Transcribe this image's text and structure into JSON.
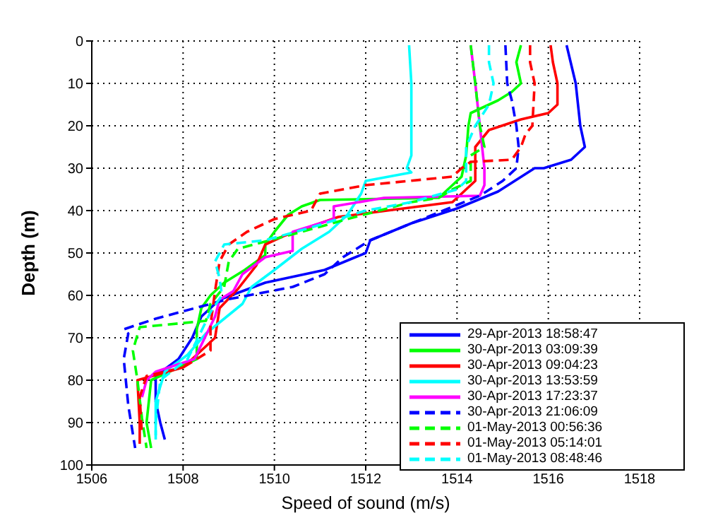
{
  "chart_data": {
    "type": "line",
    "xlabel": "Speed of sound (m/s)",
    "ylabel": "Depth (m)",
    "xlim": [
      1506,
      1518
    ],
    "xticks": [
      1506,
      1508,
      1510,
      1512,
      1514,
      1516,
      1518
    ],
    "ylim": [
      100,
      0
    ],
    "yticks": [
      0,
      10,
      20,
      30,
      40,
      50,
      60,
      70,
      80,
      90,
      100
    ],
    "grid": true,
    "legend": "bottom right",
    "marker": "none",
    "series": [
      {
        "name": "29-Apr-2013 18:58:47",
        "color": "#0000ff",
        "line_style": "solid",
        "x": [
          1516.4,
          1516.6,
          1516.7,
          1516.8,
          1516.5,
          1515.9,
          1515.7,
          1514.9,
          1514,
          1513,
          1512.1,
          1512,
          1511.1,
          1509.8,
          1508.8,
          1508.4,
          1508.2,
          1507.9,
          1507.4,
          1507.4,
          1507.5,
          1507.6
        ],
        "values": [
          1,
          10,
          20,
          25,
          28,
          30,
          30,
          35.5,
          39.5,
          43,
          47,
          50,
          54,
          57,
          61,
          65,
          70,
          75,
          79,
          85,
          90,
          94
        ]
      },
      {
        "name": "30-Apr-2013 03:09:39",
        "color": "#00ff00",
        "line_style": "solid",
        "x": [
          1515.4,
          1515.3,
          1515.4,
          1515.2,
          1514.9,
          1514.3,
          1514.25,
          1514.2,
          1514.1,
          1513.8,
          1513.6,
          1511,
          1510.6,
          1510.3,
          1510,
          1509.8,
          1509.8,
          1509.35,
          1508.9,
          1508.6,
          1508.4,
          1508.3,
          1508.3,
          1507.3,
          1507.2,
          1507.3
        ],
        "values": [
          1,
          5,
          10,
          12,
          14,
          17,
          20,
          27,
          32,
          35,
          37,
          37.5,
          39,
          41,
          45,
          48,
          50.5,
          54,
          57,
          60,
          63,
          68,
          75,
          80,
          90,
          96
        ]
      },
      {
        "name": "30-Apr-2013 09:04:23",
        "color": "#ff0000",
        "line_style": "solid",
        "x": [
          1516.05,
          1516.1,
          1516.2,
          1516.2,
          1516,
          1515.4,
          1514.7,
          1514.4,
          1514.4,
          1514.2,
          1513.9,
          1511.4,
          1510.2,
          1509.8,
          1509.6,
          1509.2,
          1508.8,
          1508.7,
          1508.2,
          1508,
          1507,
          1507.05,
          1507.05
        ],
        "values": [
          1,
          5,
          10,
          15,
          17,
          18.5,
          21,
          25,
          33,
          35,
          38,
          41.5,
          46,
          48,
          53,
          58.5,
          63,
          70,
          75,
          77,
          80,
          90,
          95
        ]
      },
      {
        "name": "30-Apr-2013 13:53:59",
        "color": "#00ffff",
        "line_style": "solid",
        "x": [
          1512.95,
          1513,
          1513,
          1513,
          1512.9,
          1513,
          1512,
          1511.9,
          1511.6,
          1511.2,
          1510.6,
          1510,
          1509.5,
          1509.3,
          1508.5,
          1508.1,
          1507.6,
          1507.4,
          1507.4
        ],
        "values": [
          1,
          10,
          20,
          27,
          30,
          31,
          33,
          36,
          41,
          45,
          49,
          54,
          58,
          62,
          69,
          74,
          78,
          85,
          93
        ]
      },
      {
        "name": "30-Apr-2013 17:23:37",
        "color": "#ff00ff",
        "line_style": "solid",
        "x": [
          1514.3,
          1514.4,
          1514.5,
          1514.6,
          1514.6,
          1514.5,
          1512.4,
          1511.3,
          1511.3,
          1510.4,
          1510.4,
          1509.8,
          1509.3,
          1509.1,
          1508.8,
          1508.7,
          1508.25,
          1507.4,
          1507.2,
          1507.1
        ],
        "values": [
          1,
          10,
          20,
          30,
          34,
          36.5,
          37,
          39,
          42,
          45,
          49.5,
          51,
          55,
          59,
          61,
          65,
          75,
          78,
          80,
          84
        ]
      },
      {
        "name": "30-Apr-2013 21:06:09",
        "color": "#0000ff",
        "line_style": "dashed",
        "x": [
          1515.06,
          1515.1,
          1515.2,
          1515.3,
          1515.35,
          1515.3,
          1515,
          1514.5,
          1513.7,
          1513,
          1512.1,
          1511.5,
          1511.1,
          1510.4,
          1508.95,
          1507.4,
          1506.7,
          1506.8,
          1506.7,
          1506.8,
          1506.95
        ],
        "values": [
          1,
          10,
          14,
          20,
          25,
          30,
          33,
          36.5,
          40,
          43,
          47,
          51,
          55,
          58,
          61,
          65.5,
          68,
          69,
          75,
          86,
          96
        ]
      },
      {
        "name": "01-May-2013 00:56:36",
        "color": "#00ff00",
        "line_style": "dashed",
        "x": [
          1514.3,
          1514.4,
          1514.5,
          1514.6,
          1514.3,
          1514.3,
          1513.9,
          1513.6,
          1513,
          1511.6,
          1510.6,
          1509.9,
          1509.2,
          1509,
          1508.9,
          1508.6,
          1508.5,
          1507.05,
          1506.9,
          1507,
          1507.1,
          1507.2
        ],
        "values": [
          1,
          10,
          20,
          25,
          27,
          33,
          35,
          37,
          38,
          42,
          45,
          47,
          49,
          52,
          58,
          62,
          66,
          67.5,
          73,
          80,
          89,
          96
        ]
      },
      {
        "name": "01-May-2013 05:14:01",
        "color": "#ff0000",
        "line_style": "dashed",
        "x": [
          1515.6,
          1515.6,
          1515.7,
          1515.65,
          1515.5,
          1515.4,
          1515.2,
          1514.3,
          1514.1,
          1513.9,
          1512,
          1511,
          1510.8,
          1510,
          1509.4,
          1509,
          1508.8,
          1508.7,
          1508.6,
          1508.6,
          1508,
          1507.2,
          1507.05,
          1507.1
        ],
        "values": [
          1,
          5,
          10,
          20,
          22,
          25,
          28,
          28.5,
          30,
          32,
          34,
          36,
          40,
          42,
          45,
          48,
          52,
          59,
          67,
          73,
          77,
          79,
          84,
          93
        ]
      },
      {
        "name": "01-May-2013 08:48:46",
        "color": "#00ffff",
        "line_style": "dashed",
        "x": [
          1514.7,
          1514.7,
          1514.8,
          1514.7,
          1514.4,
          1514.2,
          1514.2,
          1514,
          1513,
          1512,
          1510.8,
          1509.8,
          1508.9,
          1508.7,
          1508.8,
          1508.85,
          1508.6,
          1508.1,
          1507.5,
          1507.4,
          1507.4
        ],
        "values": [
          1,
          5,
          10,
          15,
          20,
          25,
          33,
          35,
          38,
          40,
          44,
          47,
          48,
          52,
          56,
          60,
          64,
          75,
          80,
          90,
          94
        ]
      }
    ]
  }
}
